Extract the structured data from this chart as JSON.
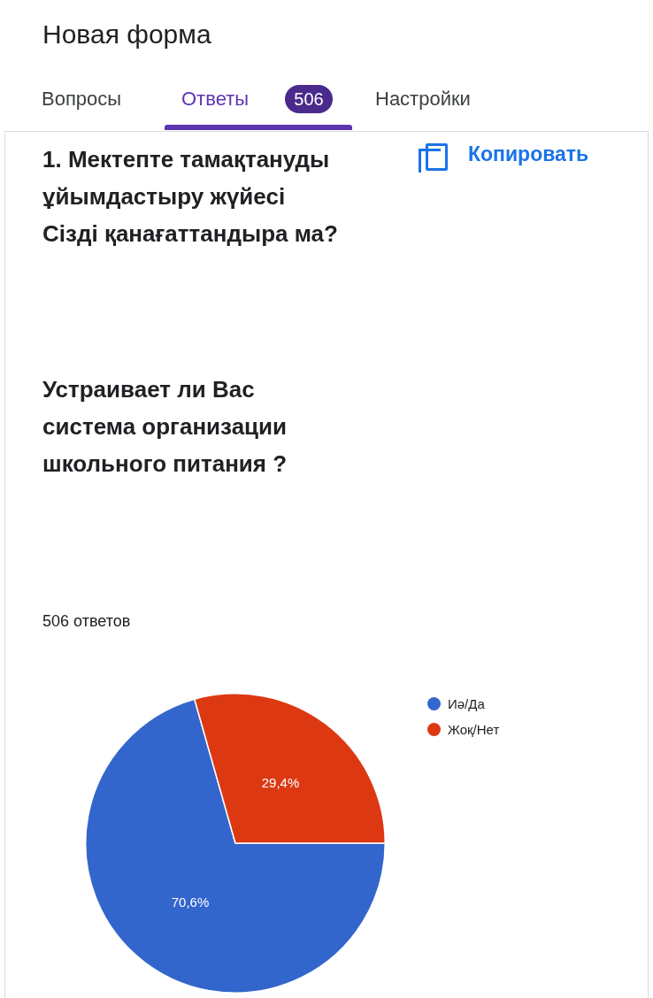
{
  "chart_data": {
    "type": "pie",
    "title": "1. Мектепте тамақтануды ұйымдастыру жүйесі Сізді қанағаттандыра ма?",
    "subtitle": "Устраивает ли Вас система организации школьного питания ?",
    "annotations": [
      "Новая форма",
      "Вопросы",
      "Ответы",
      "506",
      "Настройки",
      "Копировать",
      "506 ответов"
    ],
    "categories": [
      "Иә/Да",
      "Жоқ/Нет"
    ],
    "values": [
      70.6,
      29.4
    ],
    "colors": [
      "#3366cc",
      "#dc3912"
    ],
    "value_labels": [
      "70,6%",
      "29,4%"
    ],
    "legend": "top right"
  }
}
